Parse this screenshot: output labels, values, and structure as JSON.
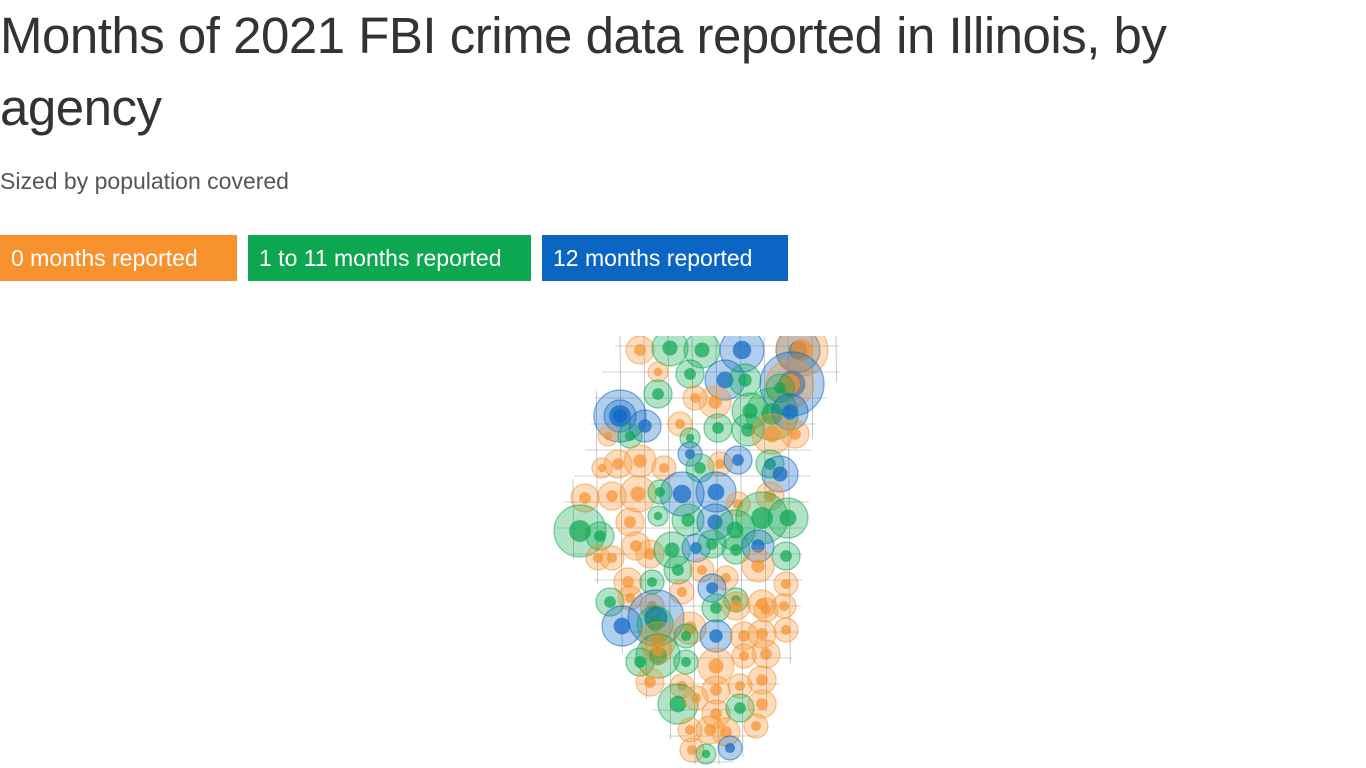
{
  "title": "Months of 2021 FBI crime data reported in Illinois, by agency",
  "subtitle": "Sized by population covered",
  "legend": [
    {
      "label": "0 months reported",
      "color": "#f7922e",
      "category": "0"
    },
    {
      "label": "1 to 11 months reported",
      "color": "#0ca750",
      "category": "1-11"
    },
    {
      "label": "12 months reported",
      "color": "#0b66c3",
      "category": "12"
    }
  ],
  "map": {
    "region": "Illinois",
    "marker": "proportional circles, sized by population covered",
    "grid_color": "#555555"
  }
}
